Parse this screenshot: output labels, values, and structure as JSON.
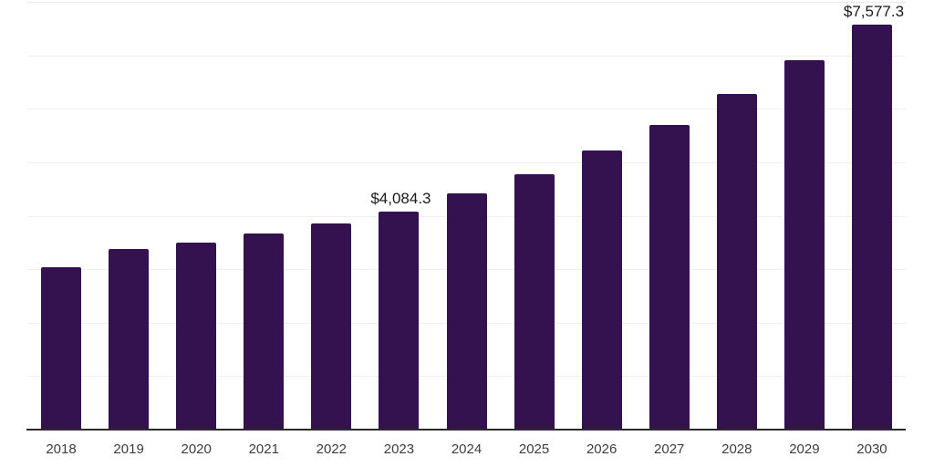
{
  "chart_data": {
    "type": "bar",
    "title": "",
    "xlabel": "",
    "ylabel": "",
    "categories": [
      "2018",
      "2019",
      "2020",
      "2021",
      "2022",
      "2023",
      "2024",
      "2025",
      "2026",
      "2027",
      "2028",
      "2029",
      "2030"
    ],
    "values": [
      3030,
      3385,
      3495,
      3670,
      3860,
      4084.3,
      4420,
      4775,
      5220,
      5695,
      6275,
      6910,
      7577.3
    ],
    "data_labels": {
      "2023": "$4,084.3",
      "2030": "$7,577.3"
    },
    "ylim": [
      0,
      8000
    ],
    "gridline_step": 1000,
    "grid_visible": true,
    "legend": "none",
    "colors": {
      "bar": "#341250",
      "axis": "#2b2b2b",
      "gridline": "#f0f0f0",
      "top_gridline": "#e9e9e9",
      "tick_label": "#3d3d3d",
      "value_label": "#1a1a1a",
      "background": "#ffffff"
    }
  }
}
